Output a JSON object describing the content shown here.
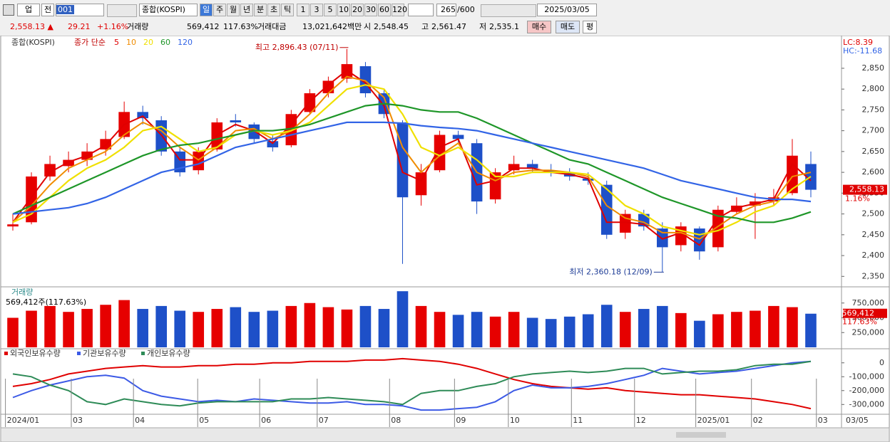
{
  "toolbar": {
    "market": "업",
    "prev": "전",
    "code": "001",
    "name": "종합(KOSPI)",
    "periods": [
      "일",
      "주",
      "월",
      "년",
      "분",
      "초",
      "틱"
    ],
    "intervals": [
      "1",
      "3",
      "5",
      "10",
      "20",
      "30",
      "60",
      "120"
    ],
    "count": "265",
    "max_count": "/600",
    "date": "2025/03/05"
  },
  "info_bar": {
    "price": "2,558.13 ▲",
    "change": "29.21",
    "change_pct": "+1.16%",
    "volume_label": "거래량",
    "volume": "569,412",
    "volume_pct": "117.63%",
    "amount_label": "거래대금",
    "amount": "13,021,642백만",
    "open_label": "시",
    "open": "2,548.45",
    "high_label": "고",
    "high": "2,561.47",
    "low_label": "저",
    "low": "2,535.1",
    "buy": "매수",
    "sell": "매도",
    "avg": "평"
  },
  "chart_data": [
    {
      "type": "candlestick",
      "title": "종합(KOSPI)",
      "legend_title": "종가 단순",
      "up_color": "#e60000",
      "down_color": "#1e50c8",
      "open": [
        2470,
        2480,
        2590,
        2615,
        2630,
        2655,
        2685,
        2745,
        2725,
        2650,
        2605,
        2655,
        2725,
        2715,
        2675,
        2665,
        2745,
        2790,
        2825,
        2855,
        2790,
        2720,
        2545,
        2605,
        2690,
        2670,
        2535,
        2605,
        2620,
        2605,
        2600,
        2585,
        2570,
        2455,
        2500,
        2465,
        2425,
        2465,
        2420,
        2505,
        2520,
        2530,
        2550,
        2620
      ],
      "high": [
        2500,
        2600,
        2640,
        2650,
        2670,
        2700,
        2770,
        2760,
        2735,
        2660,
        2660,
        2730,
        2740,
        2720,
        2690,
        2750,
        2800,
        2830,
        2896.43,
        2865,
        2800,
        2725,
        2620,
        2700,
        2700,
        2680,
        2610,
        2640,
        2630,
        2620,
        2610,
        2600,
        2580,
        2510,
        2510,
        2480,
        2480,
        2470,
        2520,
        2540,
        2550,
        2560,
        2680,
        2650
      ],
      "low": [
        2460,
        2475,
        2580,
        2600,
        2615,
        2640,
        2680,
        2715,
        2640,
        2590,
        2595,
        2650,
        2710,
        2670,
        2650,
        2660,
        2740,
        2780,
        2815,
        2780,
        2730,
        2380,
        2520,
        2600,
        2670,
        2500,
        2525,
        2595,
        2600,
        2590,
        2580,
        2570,
        2440,
        2440,
        2460,
        2360.18,
        2410,
        2390,
        2410,
        2500,
        2440,
        2520,
        2545,
        2540
      ],
      "close": [
        2475,
        2590,
        2620,
        2630,
        2650,
        2680,
        2745,
        2730,
        2650,
        2600,
        2650,
        2720,
        2720,
        2680,
        2660,
        2740,
        2790,
        2820,
        2860,
        2790,
        2740,
        2540,
        2600,
        2690,
        2680,
        2530,
        2600,
        2620,
        2610,
        2600,
        2590,
        2580,
        2450,
        2500,
        2470,
        2420,
        2470,
        2410,
        2510,
        2520,
        2530,
        2540,
        2640,
        2558.13
      ],
      "series": [
        {
          "name": "5",
          "color": "#e00000",
          "values": [
            2480,
            2540,
            2600,
            2625,
            2640,
            2665,
            2715,
            2735,
            2690,
            2630,
            2630,
            2690,
            2715,
            2700,
            2670,
            2715,
            2770,
            2810,
            2845,
            2815,
            2760,
            2600,
            2580,
            2660,
            2680,
            2570,
            2580,
            2610,
            2610,
            2600,
            2595,
            2585,
            2480,
            2480,
            2475,
            2440,
            2455,
            2425,
            2490,
            2515,
            2525,
            2535,
            2620,
            2580
          ]
        },
        {
          "name": "10",
          "color": "#f08c00",
          "values": [
            2480,
            2520,
            2570,
            2610,
            2630,
            2650,
            2690,
            2720,
            2700,
            2660,
            2630,
            2660,
            2700,
            2705,
            2680,
            2700,
            2740,
            2790,
            2830,
            2820,
            2780,
            2660,
            2600,
            2640,
            2670,
            2600,
            2580,
            2600,
            2605,
            2605,
            2600,
            2590,
            2520,
            2490,
            2480,
            2455,
            2455,
            2440,
            2470,
            2500,
            2520,
            2530,
            2590,
            2600
          ]
        },
        {
          "name": "20",
          "color": "#f0e000",
          "values": [
            2480,
            2500,
            2540,
            2580,
            2610,
            2630,
            2660,
            2700,
            2710,
            2680,
            2650,
            2660,
            2690,
            2700,
            2690,
            2700,
            2720,
            2760,
            2800,
            2810,
            2800,
            2740,
            2660,
            2640,
            2660,
            2630,
            2590,
            2590,
            2600,
            2600,
            2600,
            2595,
            2560,
            2520,
            2500,
            2470,
            2460,
            2450,
            2460,
            2480,
            2505,
            2520,
            2560,
            2590
          ]
        },
        {
          "name": "60",
          "color": "#1e9628",
          "values": [
            2500,
            2520,
            2540,
            2560,
            2580,
            2600,
            2620,
            2640,
            2655,
            2665,
            2670,
            2680,
            2690,
            2700,
            2700,
            2705,
            2715,
            2730,
            2745,
            2760,
            2765,
            2760,
            2750,
            2745,
            2745,
            2730,
            2710,
            2690,
            2670,
            2650,
            2630,
            2620,
            2600,
            2580,
            2560,
            2540,
            2525,
            2510,
            2495,
            2490,
            2480,
            2480,
            2490,
            2505
          ]
        },
        {
          "name": "120",
          "color": "#3264e6",
          "values": [
            2500,
            2505,
            2510,
            2515,
            2525,
            2540,
            2560,
            2580,
            2600,
            2610,
            2620,
            2640,
            2660,
            2670,
            2680,
            2690,
            2700,
            2710,
            2720,
            2720,
            2720,
            2718,
            2712,
            2708,
            2705,
            2700,
            2690,
            2680,
            2670,
            2660,
            2650,
            2640,
            2630,
            2620,
            2610,
            2595,
            2580,
            2570,
            2560,
            2550,
            2540,
            2535,
            2535,
            2530
          ]
        }
      ],
      "xlim": [
        -0.5,
        43.5
      ],
      "ylim": [
        2330,
        2920
      ],
      "yticks": [
        {
          "value": 2350,
          "label": "2,350"
        },
        {
          "value": 2400,
          "label": "2,400"
        },
        {
          "value": 2450,
          "label": "2,450"
        },
        {
          "value": 2500,
          "label": "2,500"
        },
        {
          "value": 2550,
          "label": "2,550"
        },
        {
          "value": 2600,
          "label": "2,600"
        },
        {
          "value": 2650,
          "label": "2,650"
        },
        {
          "value": 2700,
          "label": "2,700"
        },
        {
          "value": 2750,
          "label": "2,750"
        },
        {
          "value": 2800,
          "label": "2,800"
        },
        {
          "value": 2850,
          "label": "2,850"
        }
      ],
      "annotations": [
        "최고 2,896.43 (07/11)",
        "최저 2,360.18 (12/09)"
      ],
      "lc_label": "LC:8.39",
      "hc_label": "HC:-11.68",
      "last_label": "2,558.13",
      "last_change_label": "1.16%"
    },
    {
      "type": "bar",
      "title": "거래량",
      "subtitle": "569,412주(117.63%)",
      "last_label": "569,412",
      "last_pct_label": "117.63%",
      "values": [
        500000,
        620000,
        700000,
        600000,
        650000,
        720000,
        800000,
        650000,
        700000,
        620000,
        600000,
        650000,
        680000,
        600000,
        620000,
        700000,
        750000,
        680000,
        640000,
        700000,
        650000,
        950000,
        700000,
        600000,
        550000,
        600000,
        520000,
        600000,
        500000,
        480000,
        520000,
        560000,
        720000,
        600000,
        650000,
        700000,
        580000,
        450000,
        560000,
        600000,
        620000,
        700000,
        680000,
        569412
      ],
      "xlim": [
        -0.5,
        43.5
      ],
      "ylim": [
        0,
        1000000
      ],
      "yticks": [
        {
          "value": 250000,
          "label": "250,000"
        },
        {
          "value": 500000,
          "label": "500,000"
        },
        {
          "value": 750000,
          "label": "750,000"
        }
      ]
    },
    {
      "type": "line",
      "series": [
        {
          "name": "외국인보유수량",
          "color": "#e00000",
          "values": [
            -170000,
            -150000,
            -120000,
            -80000,
            -60000,
            -40000,
            -30000,
            -20000,
            -30000,
            -30000,
            -20000,
            -20000,
            -10000,
            -10000,
            0,
            0,
            10000,
            10000,
            10000,
            20000,
            20000,
            30000,
            20000,
            10000,
            -10000,
            -40000,
            -80000,
            -120000,
            -150000,
            -170000,
            -180000,
            -190000,
            -180000,
            -200000,
            -210000,
            -220000,
            -230000,
            -230000,
            -240000,
            -250000,
            -260000,
            -280000,
            -300000,
            -330000
          ]
        },
        {
          "name": "기관보유수량",
          "color": "#3c5ae6",
          "values": [
            -250000,
            -200000,
            -160000,
            -130000,
            -100000,
            -90000,
            -110000,
            -200000,
            -240000,
            -260000,
            -280000,
            -270000,
            -280000,
            -260000,
            -270000,
            -280000,
            -290000,
            -290000,
            -280000,
            -300000,
            -300000,
            -310000,
            -340000,
            -340000,
            -330000,
            -320000,
            -280000,
            -200000,
            -160000,
            -180000,
            -180000,
            -170000,
            -150000,
            -120000,
            -90000,
            -40000,
            -60000,
            -80000,
            -70000,
            -60000,
            -40000,
            -20000,
            0,
            10000
          ]
        },
        {
          "name": "개인보유수량",
          "color": "#2e8b57",
          "values": [
            -80000,
            -100000,
            -160000,
            -200000,
            -280000,
            -300000,
            -260000,
            -280000,
            -300000,
            -310000,
            -290000,
            -280000,
            -280000,
            -280000,
            -280000,
            -260000,
            -260000,
            -250000,
            -260000,
            -270000,
            -280000,
            -300000,
            -220000,
            -200000,
            -200000,
            -170000,
            -150000,
            -100000,
            -80000,
            -70000,
            -60000,
            -70000,
            -60000,
            -40000,
            -40000,
            -80000,
            -70000,
            -60000,
            -60000,
            -50000,
            -20000,
            -10000,
            -10000,
            10000
          ]
        }
      ],
      "xlim": [
        -0.5,
        43.5
      ],
      "ylim": [
        -360000,
        50000
      ],
      "yticks": [
        0,
        {
          "value": -100000,
          "label": "-100,000"
        },
        {
          "value": -200000,
          "label": "-200,000"
        },
        {
          "value": -300000,
          "label": "-300,000"
        }
      ],
      "xticks": [
        {
          "value": -0.4,
          "label": "2024/01"
        },
        {
          "value": 3.15,
          "label": "03"
        },
        {
          "value": 6.5,
          "label": "04"
        },
        {
          "value": 9.96,
          "label": "05"
        },
        {
          "value": 13.3,
          "label": "06"
        },
        {
          "value": 16.4,
          "label": "07"
        },
        {
          "value": 20.3,
          "label": "08"
        },
        {
          "value": 23.8,
          "label": "09"
        },
        {
          "value": 26.7,
          "label": "10"
        },
        {
          "value": 30.1,
          "label": "11"
        },
        {
          "value": 33.5,
          "label": "12"
        },
        {
          "value": 36.8,
          "label": "2025/01"
        },
        {
          "value": 39.8,
          "label": "02"
        },
        {
          "value": 43.3,
          "label": "03"
        }
      ],
      "end_label": "03/05"
    }
  ]
}
